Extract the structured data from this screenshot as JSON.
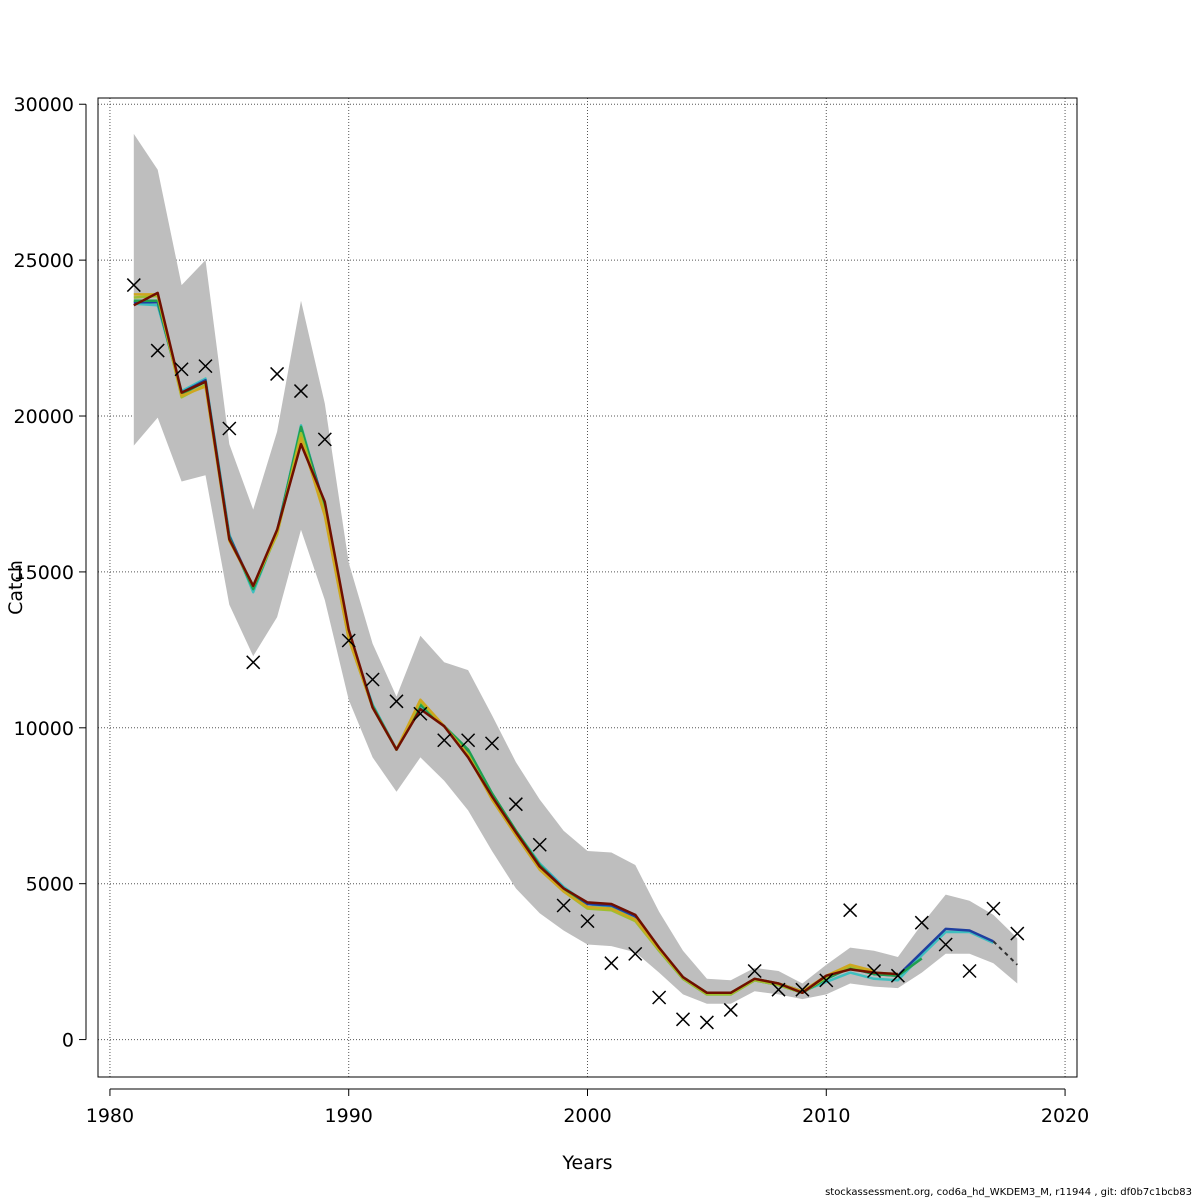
{
  "chart_data": {
    "type": "line",
    "xlabel": "Years",
    "ylabel": "Catch",
    "xlim": [
      1979.5,
      2020.5
    ],
    "ylim": [
      -1200,
      30200
    ],
    "grid": true,
    "xticks": [
      1980,
      1990,
      2000,
      2010,
      2020
    ],
    "yticks": [
      0,
      5000,
      10000,
      15000,
      20000,
      25000,
      30000
    ],
    "band": {
      "color": "#bebebe",
      "x": [
        1981,
        1982,
        1983,
        1984,
        1985,
        1986,
        1987,
        1988,
        1989,
        1990,
        1991,
        1992,
        1993,
        1994,
        1995,
        1996,
        1997,
        1998,
        1999,
        2000,
        2001,
        2002,
        2003,
        2004,
        2005,
        2006,
        2007,
        2008,
        2009,
        2010,
        2011,
        2012,
        2013,
        2014,
        2015,
        2016,
        2017,
        2018
      ],
      "upper": [
        29050,
        27900,
        24200,
        25000,
        19100,
        17000,
        19500,
        23700,
        20400,
        15300,
        12700,
        11000,
        12950,
        12100,
        11850,
        10400,
        8900,
        7700,
        6700,
        6050,
        6000,
        5600,
        4100,
        2850,
        1950,
        1900,
        2300,
        2200,
        1800,
        2400,
        2950,
        2850,
        2650,
        3700,
        4650,
        4450,
        4000,
        3250
      ],
      "lower": [
        19050,
        19950,
        17900,
        18100,
        13950,
        12300,
        13550,
        16350,
        14100,
        10900,
        9050,
        7950,
        9050,
        8300,
        7350,
        6050,
        4850,
        4050,
        3500,
        3050,
        3000,
        2800,
        2150,
        1450,
        1150,
        1150,
        1550,
        1450,
        1300,
        1450,
        1800,
        1700,
        1650,
        2150,
        2750,
        2750,
        2450,
        1800
      ]
    },
    "series": [
      {
        "color": "#3fbfbf",
        "x": [
          1981,
          1982,
          1983,
          1984,
          1985,
          1986,
          1987,
          1988,
          1989,
          1990,
          1991,
          1992,
          1993,
          1994,
          1995,
          1996,
          1997,
          1998,
          1999,
          2000,
          2001,
          2002,
          2003,
          2004,
          2005,
          2006,
          2007,
          2008,
          2009,
          2010,
          2011,
          2012,
          2013,
          2014,
          2015,
          2016,
          2017
        ],
        "values": [
          23600,
          23550,
          20800,
          21200,
          16200,
          14350,
          16300,
          19700,
          17050,
          12950,
          10750,
          9300,
          10700,
          10050,
          9300,
          7900,
          6700,
          5650,
          4900,
          4350,
          4250,
          3950,
          2900,
          2000,
          1500,
          1500,
          1950,
          1800,
          1550,
          1850,
          2150,
          1950,
          1900,
          2700,
          3450,
          3450,
          3100
        ]
      },
      {
        "color": "#1f3f9f",
        "x": [
          1981,
          1982,
          1983,
          1984,
          1985,
          1986,
          1987,
          1988,
          1989,
          1990,
          1991,
          1992,
          1993,
          1994,
          1995,
          1996,
          1997,
          1998,
          1999,
          2000,
          2001,
          2002,
          2003,
          2004,
          2005,
          2006,
          2007,
          2008,
          2009,
          2010,
          2011,
          2012,
          2013,
          2014,
          2015,
          2016,
          2017
        ],
        "values": [
          23650,
          23650,
          20750,
          21150,
          16150,
          14500,
          16300,
          19600,
          17100,
          13000,
          10700,
          9300,
          10750,
          10050,
          9250,
          7850,
          6650,
          5600,
          4850,
          4350,
          4300,
          3950,
          2900,
          2000,
          1500,
          1500,
          1950,
          1800,
          1550,
          1950,
          2300,
          2100,
          2050,
          2800,
          3550,
          3500,
          3150
        ]
      },
      {
        "color": "#1f9f4f",
        "x": [
          1981,
          1982,
          1983,
          1984,
          1985,
          1986,
          1987,
          1988,
          1989,
          1990,
          1991,
          1992,
          1993,
          1994,
          1995,
          1996,
          1997,
          1998,
          1999,
          2000,
          2001,
          2002,
          2003,
          2004,
          2005,
          2006,
          2007,
          2008,
          2009,
          2010,
          2011,
          2012,
          2013,
          2014
        ],
        "values": [
          23700,
          23700,
          20700,
          21100,
          16100,
          14450,
          16250,
          19650,
          17000,
          12900,
          10700,
          9300,
          10750,
          10050,
          9300,
          7900,
          6700,
          5600,
          4800,
          4250,
          4200,
          3850,
          2850,
          1950,
          1450,
          1450,
          1900,
          1750,
          1500,
          1950,
          2300,
          2100,
          2050,
          2600
        ]
      },
      {
        "color": "#9fbf2f",
        "x": [
          1981,
          1982,
          1983,
          1984,
          1985,
          1986,
          1987,
          1988,
          1989,
          1990,
          1991,
          1992,
          1993,
          1994,
          1995,
          1996,
          1997,
          1998,
          1999,
          2000,
          2001,
          2002,
          2003,
          2004,
          2005,
          2006,
          2007,
          2008,
          2009,
          2010,
          2011,
          2012,
          2013
        ],
        "values": [
          23800,
          23850,
          20600,
          21000,
          16050,
          14550,
          16200,
          19450,
          16900,
          12850,
          10650,
          9300,
          10850,
          10050,
          9150,
          7750,
          6600,
          5500,
          4750,
          4200,
          4150,
          3800,
          2850,
          1950,
          1450,
          1450,
          1900,
          1750,
          1500,
          2000,
          2350,
          2150,
          2100
        ]
      },
      {
        "color": "#cfa71f",
        "x": [
          1981,
          1982,
          1983,
          1984,
          1985,
          1986,
          1987,
          1988,
          1989,
          1990,
          1991,
          1992,
          1993,
          1994,
          1995,
          1996,
          1997,
          1998,
          1999,
          2000,
          2001,
          2002,
          2003,
          2004,
          2005,
          2006,
          2007,
          2008,
          2009,
          2010,
          2011,
          2012
        ],
        "values": [
          23900,
          23900,
          20650,
          20950,
          16000,
          14550,
          16250,
          19300,
          16800,
          12850,
          10650,
          9300,
          10900,
          10050,
          9100,
          7700,
          6550,
          5450,
          4750,
          4250,
          4200,
          3850,
          2900,
          2000,
          1500,
          1500,
          1950,
          1800,
          1550,
          2050,
          2400,
          2200
        ]
      },
      {
        "color": "#6f0f00",
        "x": [
          1981,
          1982,
          1983,
          1984,
          1985,
          1986,
          1987,
          1988,
          1989,
          1990,
          1991,
          1992,
          1993,
          1994,
          1995,
          1996,
          1997,
          1998,
          1999,
          2000,
          2001,
          2002,
          2003,
          2004,
          2005,
          2006,
          2007,
          2008,
          2009,
          2010,
          2011,
          2012,
          2013
        ],
        "values": [
          23550,
          23950,
          20750,
          21100,
          16050,
          14550,
          16350,
          19100,
          17250,
          13150,
          10650,
          9300,
          10600,
          10050,
          9050,
          7800,
          6650,
          5550,
          4850,
          4400,
          4350,
          4000,
          2950,
          2000,
          1500,
          1500,
          1950,
          1800,
          1500,
          2050,
          2250,
          2150,
          2100
        ]
      },
      {
        "color": "#303030",
        "dashed": true,
        "x": [
          2017,
          2018
        ],
        "values": [
          3150,
          2400
        ]
      }
    ],
    "observations": {
      "marker": "x",
      "x": [
        1981,
        1982,
        1983,
        1984,
        1985,
        1986,
        1987,
        1988,
        1989,
        1990,
        1991,
        1992,
        1993,
        1994,
        1995,
        1996,
        1997,
        1998,
        1999,
        2000,
        2001,
        2002,
        2003,
        2004,
        2005,
        2006,
        2007,
        2008,
        2009,
        2010,
        2011,
        2012,
        2013,
        2014,
        2015,
        2016,
        2017,
        2018
      ],
      "values": [
        24200,
        22100,
        21500,
        21600,
        19600,
        12100,
        21350,
        20800,
        19250,
        12800,
        11550,
        10850,
        10450,
        9600,
        9600,
        9500,
        7550,
        6250,
        4300,
        3800,
        2450,
        2750,
        1350,
        650,
        550,
        950,
        2200,
        1600,
        1600,
        1900,
        4150,
        2200,
        2050,
        3750,
        3050,
        2200,
        4200,
        3400
      ]
    }
  },
  "footer": {
    "text": "stockassessment.org, cod6a_hd_WKDEM3_M, r11944 , git: df0b7c1bcb83"
  }
}
